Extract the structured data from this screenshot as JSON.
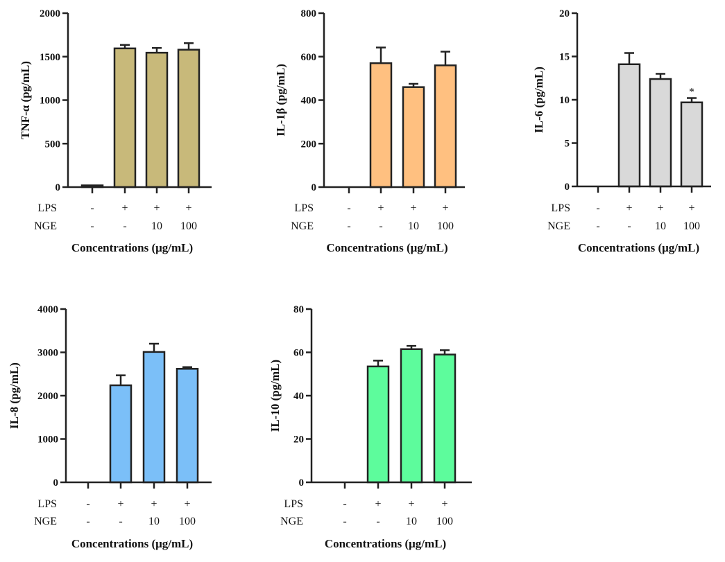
{
  "chart_data": [
    {
      "type": "bar",
      "title": "",
      "ylabel": "TNF-α (pg/mL)",
      "xlabel": "Concentrations (μg/mL)",
      "ylim": [
        0,
        2000
      ],
      "yticks": [
        "0",
        "500",
        "1000",
        "1500",
        "2000"
      ],
      "ytick_values": [
        0,
        500,
        1000,
        1500,
        2000
      ],
      "row_labels": [
        "LPS",
        "NGE"
      ],
      "conditions": [
        [
          "-",
          "-"
        ],
        [
          "+",
          "-"
        ],
        [
          "+",
          "10"
        ],
        [
          "+",
          "100"
        ]
      ],
      "values": [
        20,
        1595,
        1545,
        1580
      ],
      "errors": [
        0,
        40,
        55,
        75
      ],
      "annotations": [
        "",
        "",
        "",
        ""
      ],
      "color": "#c8b97a"
    },
    {
      "type": "bar",
      "title": "",
      "ylabel": "IL-1β (pg/mL)",
      "xlabel": "Concentrations (μg/mL)",
      "ylim": [
        0,
        800
      ],
      "yticks": [
        "0",
        "200",
        "400",
        "600",
        "800"
      ],
      "ytick_values": [
        0,
        200,
        400,
        600,
        800
      ],
      "row_labels": [
        "LPS",
        "NGE"
      ],
      "conditions": [
        [
          "-",
          "-"
        ],
        [
          "+",
          "-"
        ],
        [
          "+",
          "10"
        ],
        [
          "+",
          "100"
        ]
      ],
      "values": [
        0,
        570,
        460,
        560
      ],
      "errors": [
        0,
        72,
        15,
        63
      ],
      "annotations": [
        "",
        "",
        "",
        ""
      ],
      "color": "#ffc080"
    },
    {
      "type": "bar",
      "title": "",
      "ylabel": "IL-6 (pg/mL)",
      "xlabel": "Concentrations (μg/mL)",
      "ylim": [
        0,
        20
      ],
      "yticks": [
        "0",
        "5",
        "10",
        "15",
        "20"
      ],
      "ytick_values": [
        0,
        5,
        10,
        15,
        20
      ],
      "row_labels": [
        "LPS",
        "NGE"
      ],
      "conditions": [
        [
          "-",
          "-"
        ],
        [
          "+",
          "-"
        ],
        [
          "+",
          "10"
        ],
        [
          "+",
          "100"
        ]
      ],
      "values": [
        0,
        14.1,
        12.4,
        9.7
      ],
      "errors": [
        0,
        1.3,
        0.6,
        0.5
      ],
      "annotations": [
        "",
        "",
        "",
        "*"
      ],
      "color": "#d9d9d9"
    },
    {
      "type": "bar",
      "title": "",
      "ylabel": "IL-8 (pg/mL)",
      "xlabel": "Concentrations (μg/mL)",
      "ylim": [
        0,
        4000
      ],
      "yticks": [
        "0",
        "1000",
        "2000",
        "3000",
        "4000"
      ],
      "ytick_values": [
        0,
        1000,
        2000,
        3000,
        4000
      ],
      "row_labels": [
        "LPS",
        "NGE"
      ],
      "conditions": [
        [
          "-",
          "-"
        ],
        [
          "+",
          "-"
        ],
        [
          "+",
          "10"
        ],
        [
          "+",
          "100"
        ]
      ],
      "values": [
        0,
        2240,
        3010,
        2620
      ],
      "errors": [
        0,
        230,
        190,
        40
      ],
      "annotations": [
        "",
        "",
        "",
        ""
      ],
      "color": "#7bbff8"
    },
    {
      "type": "bar",
      "title": "",
      "ylabel": "IL-10 (pg/mL)",
      "xlabel": "Concentrations (μg/mL)",
      "ylim": [
        0,
        80
      ],
      "yticks": [
        "0",
        "20",
        "40",
        "60",
        "80"
      ],
      "ytick_values": [
        0,
        20,
        40,
        60,
        80
      ],
      "row_labels": [
        "LPS",
        "NGE"
      ],
      "conditions": [
        [
          "-",
          "-"
        ],
        [
          "+",
          "-"
        ],
        [
          "+",
          "10"
        ],
        [
          "+",
          "100"
        ]
      ],
      "values": [
        0,
        53.5,
        61.5,
        59
      ],
      "errors": [
        0,
        2.7,
        1.5,
        2
      ],
      "annotations": [
        "",
        "",
        "",
        ""
      ],
      "color": "#5dfc9c"
    }
  ]
}
